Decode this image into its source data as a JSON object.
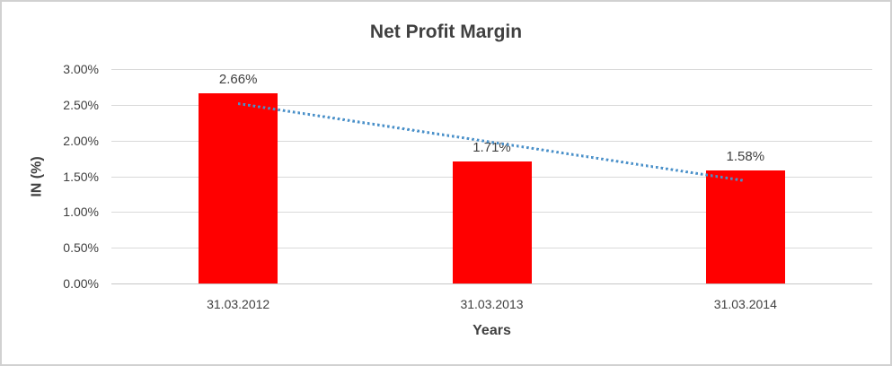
{
  "window": {
    "background": "#ffffff",
    "border_color": "#d1d1d1"
  },
  "chart_data": {
    "type": "bar",
    "title": "Net Profit Margin",
    "xlabel": "Years",
    "ylabel": "IN (%)",
    "categories": [
      "31.03.2012",
      "31.03.2013",
      "31.03.2014"
    ],
    "values": [
      2.66,
      1.71,
      1.58
    ],
    "data_labels": [
      "2.66%",
      "1.71%",
      "1.58%"
    ],
    "ylim": [
      0,
      3
    ],
    "ytick_step": 0.5,
    "yticks": [
      0,
      0.5,
      1,
      1.5,
      2,
      2.5,
      3
    ],
    "ytick_labels": [
      "0.00%",
      "0.50%",
      "1.00%",
      "1.50%",
      "2.00%",
      "2.50%",
      "3.00%"
    ],
    "grid": true,
    "legend": "none",
    "bar_color": "#ff0000",
    "text_color": "#3f3f3f",
    "gridline_color": "#d9d9d9",
    "trendline": {
      "type": "linear",
      "style": "dotted",
      "color": "#4a90c9",
      "start_value": 2.52,
      "end_value": 1.44
    }
  }
}
